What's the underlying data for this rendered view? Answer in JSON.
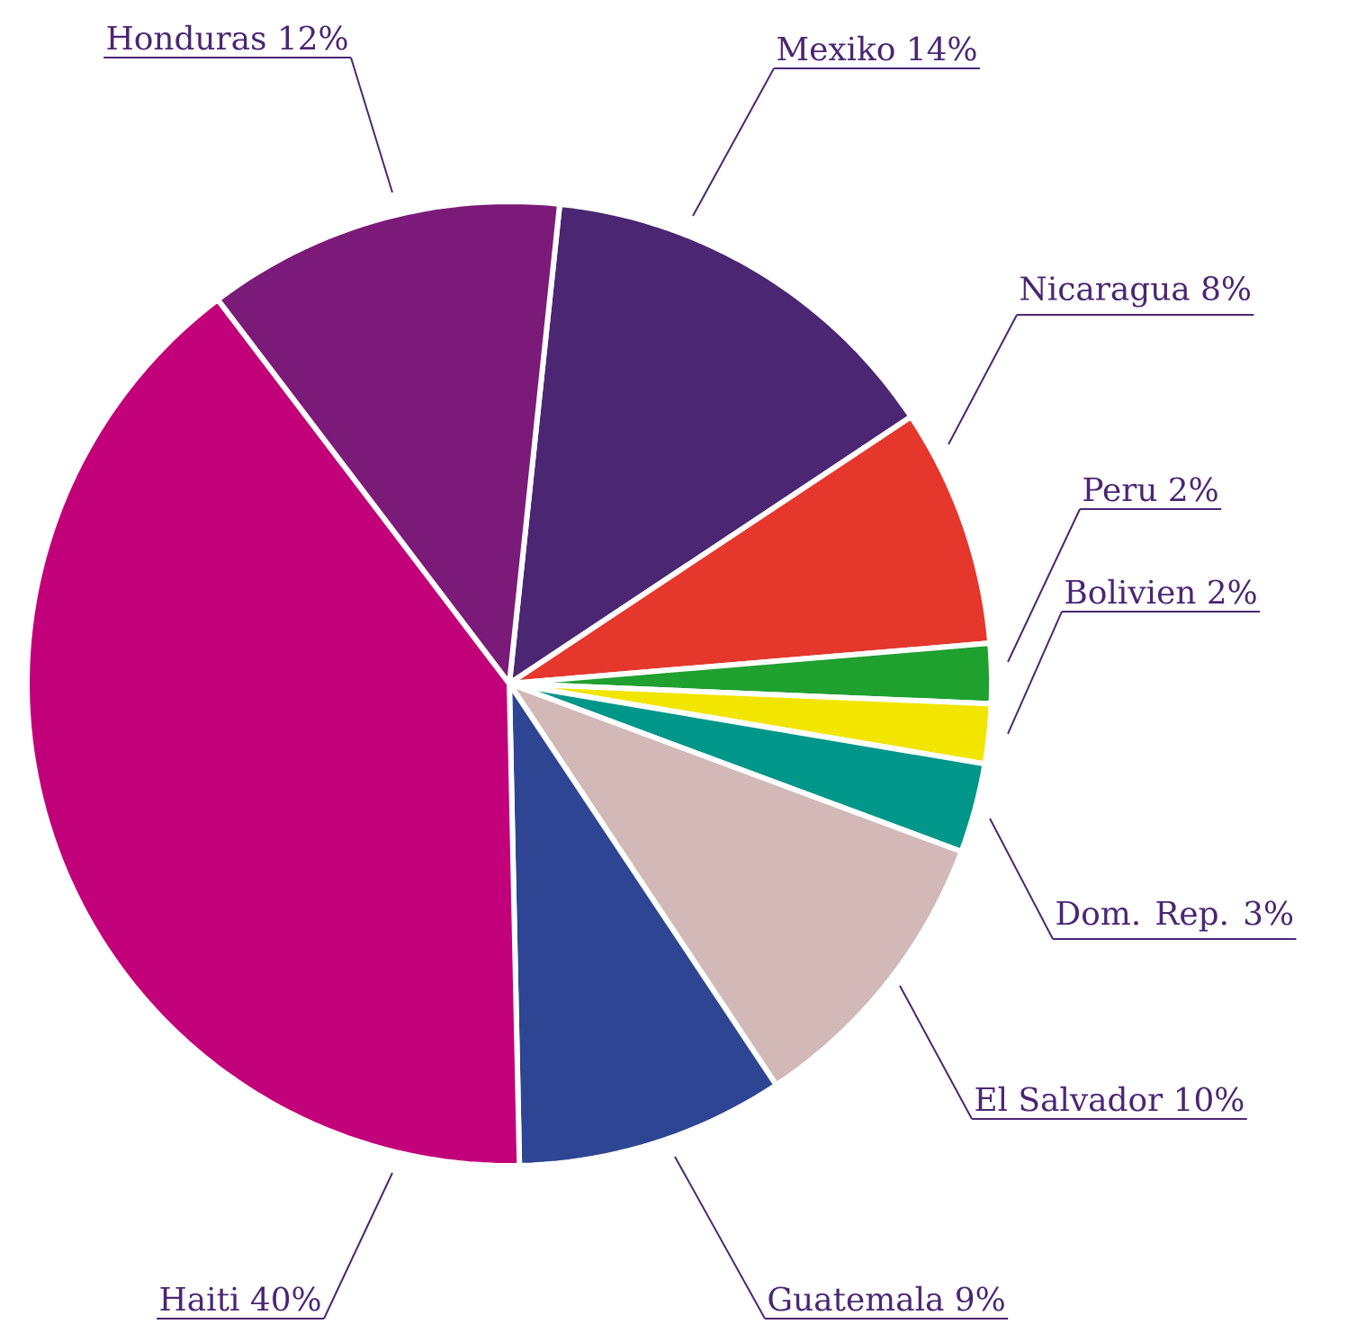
{
  "chart_data": {
    "type": "pie",
    "categories": [
      "Mexiko",
      "Nicaragua",
      "Peru",
      "Bolivien",
      "Dom. Rep.",
      "El Salvador",
      "Guatemala",
      "Haiti",
      "Honduras"
    ],
    "values": [
      14,
      8,
      2,
      2,
      3,
      10,
      9,
      40,
      12
    ],
    "value_labels": [
      "14%",
      "8%",
      "2%",
      "2%",
      "3%",
      "10%",
      "9%",
      "40%",
      "12%"
    ],
    "colors": [
      "#4b2673",
      "#e5372c",
      "#1fa02f",
      "#f2e500",
      "#00968a",
      "#d3b8b8",
      "#2e4593",
      "#c2007a",
      "#7b1a78"
    ]
  }
}
